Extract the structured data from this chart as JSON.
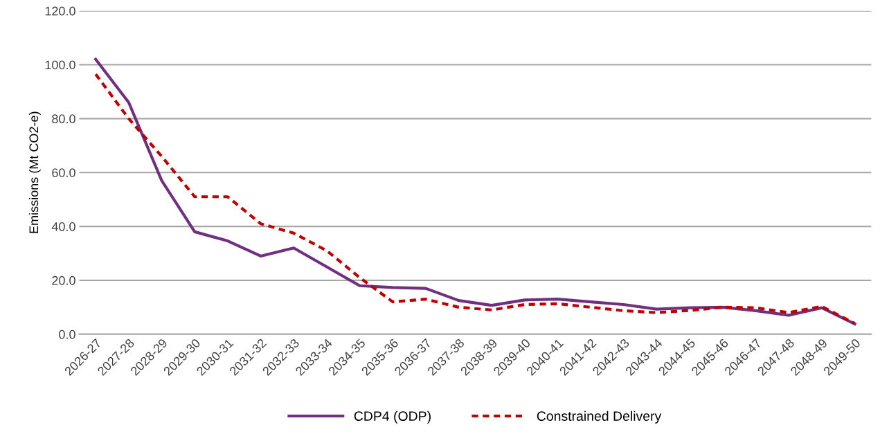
{
  "chart_data": {
    "type": "line",
    "ylabel": "Emissions (Mt CO2-e)",
    "categories": [
      "2026-27",
      "2027-28",
      "2028-29",
      "2029-30",
      "2030-31",
      "2031-32",
      "2032-33",
      "2033-34",
      "2034-35",
      "2035-36",
      "2036-37",
      "2037-38",
      "2038-39",
      "2039-40",
      "2040-41",
      "2041-42",
      "2042-43",
      "2043-44",
      "2044-45",
      "2045-46",
      "2046-47",
      "2047-48",
      "2048-49",
      "2049-50"
    ],
    "series": [
      {
        "name": "CDP4 (ODP)",
        "color": "#70307f",
        "line_style": "solid",
        "values": [
          102,
          86,
          57,
          38,
          34.6,
          29,
          32,
          25,
          18,
          17.3,
          17,
          12.5,
          10.7,
          12.7,
          13,
          12,
          11,
          9.3,
          9.8,
          10,
          8.7,
          7,
          9.8,
          3.8
        ]
      },
      {
        "name": "Constrained Delivery",
        "color": "#c00000",
        "line_style": "dashed",
        "values": [
          96.5,
          80,
          66,
          51,
          51,
          41,
          37.5,
          31,
          21,
          12,
          13,
          10,
          9,
          11,
          11.3,
          10,
          8.7,
          8,
          8.8,
          10,
          9.8,
          8,
          10.3,
          4
        ]
      }
    ],
    "ylim": [
      0,
      120
    ],
    "yticks": [
      {
        "value": 0,
        "label": "0.0"
      },
      {
        "value": 20,
        "label": "20.0"
      },
      {
        "value": 40,
        "label": "40.0"
      },
      {
        "value": 60,
        "label": "60.0"
      },
      {
        "value": 80,
        "label": "80.0"
      },
      {
        "value": 100,
        "label": "100.0"
      },
      {
        "value": 120,
        "label": "120.0"
      }
    ],
    "grid": "y",
    "legend": "bottom",
    "marker": "none"
  }
}
